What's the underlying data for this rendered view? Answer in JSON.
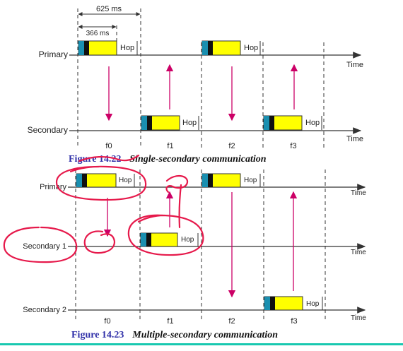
{
  "colors": {
    "line": "#333333",
    "arrow": "#cc0066",
    "hop_fill": "#ffff00",
    "hop_cyan": "#1a8fb0",
    "hop_black": "#111111",
    "caption_blue": "#2f2fa8",
    "annotation_red": "#e6194b",
    "bottom_bar": "#18c8b0"
  },
  "fig1": {
    "span_label": "625 ms",
    "sub_label": "366 ms",
    "primary_label": "Primary",
    "secondary_label": "Secondary",
    "time_label_1": "Time",
    "time_label_2": "Time",
    "hop_label": "Hop",
    "slots": [
      "f0",
      "f1",
      "f2",
      "f3"
    ],
    "caption_number": "Figure 14.22",
    "caption_title": "Single-secondary communication"
  },
  "fig2": {
    "primary_label": "Primary",
    "secondary1_label": "Secondary 1",
    "secondary2_label": "Secondary 2",
    "time_label": "Time",
    "hop_label": "Hop",
    "slots": [
      "f0",
      "f1",
      "f2",
      "f3"
    ],
    "caption_number": "Figure 14.23",
    "caption_title": "Multiple-secondary communication"
  }
}
